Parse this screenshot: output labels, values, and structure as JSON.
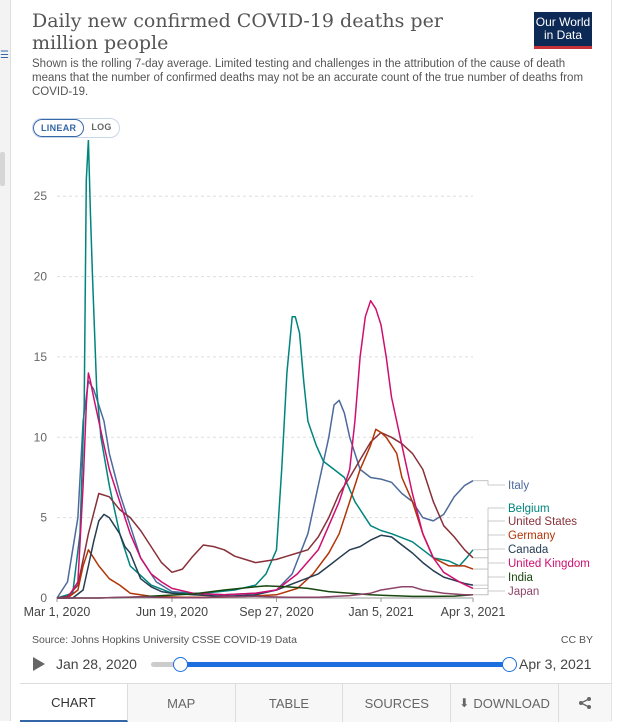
{
  "header": {
    "title": "Daily new confirmed COVID-19 deaths per million people",
    "subtitle": "Shown is the rolling 7-day average. Limited testing and challenges in the attribution of the cause of death means that the number of confirmed deaths may not be an accurate count of the true number of deaths from COVID-19.",
    "logo_line1": "Our World",
    "logo_line2": "in Data"
  },
  "scale": {
    "linear": "LINEAR",
    "log": "LOG",
    "selected": "LINEAR"
  },
  "footer": {
    "source": "Source: Johns Hopkins University CSSE COVID-19 Data",
    "license": "CC BY"
  },
  "timeline": {
    "start_label": "Jan 28, 2020",
    "end_label": "Apr 3, 2021",
    "start_fraction": 0.08,
    "end_fraction": 1.0
  },
  "tabs": {
    "chart": "CHART",
    "map": "MAP",
    "table": "TABLE",
    "sources": "SOURCES",
    "download": "DOWNLOAD"
  },
  "chart_data": {
    "type": "line",
    "title": "",
    "xlabel": "",
    "ylabel": "",
    "x_ticks": [
      "Mar 1, 2020",
      "Jun 19, 2020",
      "Sep 27, 2020",
      "Jan 5, 2021",
      "Apr 3, 2021"
    ],
    "x_tick_days": [
      0,
      110,
      210,
      310,
      398
    ],
    "y_ticks": [
      0,
      5,
      10,
      15,
      20,
      25
    ],
    "ylim": [
      0,
      28
    ],
    "xlim_days": [
      0,
      398
    ],
    "grid": "horizontal dashed",
    "legend": "right, inline labels at line ends",
    "series": [
      {
        "name": "Italy",
        "color": "#4c6a9c",
        "x": [
          0,
          10,
          20,
          25,
          30,
          35,
          40,
          45,
          50,
          60,
          70,
          80,
          95,
          110,
          130,
          160,
          190,
          210,
          225,
          240,
          250,
          260,
          265,
          270,
          275,
          280,
          290,
          300,
          310,
          320,
          330,
          340,
          350,
          360,
          370,
          380,
          390,
          398
        ],
        "y": [
          0,
          1,
          5,
          11,
          13.5,
          13,
          12,
          11,
          9,
          6.5,
          4.5,
          2.5,
          1,
          0.4,
          0.3,
          0.2,
          0.3,
          0.5,
          1.5,
          4,
          7,
          10,
          12,
          12.3,
          11.5,
          10,
          8,
          7.5,
          7.4,
          7.2,
          6.5,
          6,
          5,
          4.8,
          5.2,
          6.3,
          7,
          7.3
        ]
      },
      {
        "name": "Belgium",
        "color": "#00847e",
        "x": [
          0,
          15,
          22,
          26,
          28,
          30,
          32,
          34,
          38,
          42,
          50,
          60,
          70,
          90,
          110,
          140,
          170,
          190,
          200,
          210,
          215,
          220,
          225,
          228,
          232,
          236,
          240,
          248,
          255,
          265,
          275,
          285,
          300,
          310,
          320,
          340,
          360,
          375,
          385,
          392,
          398
        ],
        "y": [
          0,
          0.3,
          4,
          12,
          26,
          28.5,
          24,
          20,
          13,
          10,
          7,
          4,
          2,
          0.8,
          0.3,
          0.3,
          0.5,
          0.8,
          1.5,
          3,
          8,
          14,
          17.5,
          17.5,
          16.5,
          13.5,
          11,
          9.5,
          8.5,
          8,
          7.5,
          6,
          4.5,
          4.2,
          4,
          3.5,
          2.5,
          2.3,
          2,
          2.5,
          3
        ]
      },
      {
        "name": "United States",
        "color": "#883039",
        "x": [
          0,
          10,
          20,
          30,
          40,
          50,
          60,
          70,
          80,
          90,
          100,
          110,
          120,
          130,
          140,
          150,
          160,
          170,
          180,
          190,
          200,
          210,
          220,
          230,
          240,
          250,
          260,
          270,
          280,
          290,
          300,
          310,
          320,
          330,
          340,
          350,
          360,
          370,
          380,
          390,
          398
        ],
        "y": [
          0,
          0.1,
          0.8,
          4,
          6.5,
          6.3,
          5.5,
          5,
          4.2,
          3.2,
          2.2,
          1.6,
          1.8,
          2.6,
          3.3,
          3.2,
          3,
          2.6,
          2.4,
          2.2,
          2.3,
          2.4,
          2.6,
          2.8,
          3,
          3.8,
          5,
          6.5,
          7.5,
          8.6,
          9.7,
          10.3,
          10,
          9.6,
          9,
          8,
          6,
          4.5,
          3.8,
          3,
          2.5
        ]
      },
      {
        "name": "Germany",
        "color": "#b13507",
        "x": [
          0,
          10,
          20,
          25,
          30,
          35,
          40,
          50,
          60,
          70,
          90,
          120,
          150,
          180,
          210,
          230,
          245,
          260,
          270,
          280,
          290,
          300,
          305,
          310,
          315,
          320,
          325,
          330,
          340,
          350,
          360,
          375,
          390,
          398
        ],
        "y": [
          0,
          0,
          0.5,
          2,
          3,
          2.5,
          2,
          1.2,
          0.8,
          0.3,
          0.1,
          0.05,
          0.05,
          0.1,
          0.2,
          0.6,
          1.5,
          2.8,
          4,
          6,
          8,
          9.5,
          10.5,
          10.3,
          10,
          9.5,
          9,
          7.5,
          6,
          4,
          2.5,
          2,
          2,
          1.8
        ]
      },
      {
        "name": "Canada",
        "color": "#263d52",
        "x": [
          0,
          15,
          25,
          30,
          35,
          40,
          45,
          50,
          55,
          60,
          65,
          70,
          75,
          80,
          90,
          100,
          110,
          130,
          160,
          190,
          210,
          230,
          250,
          260,
          270,
          280,
          290,
          300,
          310,
          320,
          330,
          340,
          350,
          360,
          370,
          380,
          390,
          398
        ],
        "y": [
          0,
          0,
          0.5,
          2,
          3.5,
          4.8,
          5.2,
          5,
          4.5,
          4,
          3.2,
          2.8,
          2,
          1.2,
          0.7,
          0.4,
          0.3,
          0.2,
          0.1,
          0.2,
          0.5,
          1,
          1.5,
          2,
          2.5,
          3,
          3.2,
          3.6,
          3.9,
          3.8,
          3.3,
          2.8,
          2.2,
          1.7,
          1.3,
          1.1,
          0.9,
          0.8
        ]
      },
      {
        "name": "United Kingdom",
        "color": "#ce0f71",
        "x": [
          0,
          10,
          20,
          25,
          28,
          30,
          32,
          35,
          40,
          45,
          50,
          60,
          70,
          80,
          90,
          100,
          110,
          130,
          160,
          190,
          210,
          230,
          250,
          260,
          270,
          280,
          285,
          290,
          295,
          300,
          305,
          310,
          315,
          320,
          330,
          340,
          350,
          360,
          370,
          385,
          398
        ],
        "y": [
          0,
          0,
          1,
          7,
          12,
          14,
          13.5,
          12.5,
          11,
          9.5,
          8,
          6,
          4,
          2.5,
          1.5,
          1,
          0.6,
          0.3,
          0.2,
          0.3,
          0.5,
          1.5,
          3,
          4.5,
          6,
          8,
          11,
          15,
          17.5,
          18.5,
          18,
          17,
          15,
          12.5,
          9.5,
          6.5,
          4,
          2.5,
          1.6,
          1,
          0.6
        ]
      },
      {
        "name": "India",
        "color": "#18470f",
        "x": [
          0,
          40,
          70,
          100,
          130,
          160,
          190,
          200,
          220,
          240,
          260,
          280,
          300,
          320,
          340,
          360,
          380,
          398
        ],
        "y": [
          0,
          0,
          0.05,
          0.15,
          0.25,
          0.5,
          0.7,
          0.75,
          0.7,
          0.6,
          0.4,
          0.3,
          0.2,
          0.15,
          0.1,
          0.1,
          0.12,
          0.2
        ]
      },
      {
        "name": "Japan",
        "color": "#8c4569",
        "x": [
          0,
          40,
          60,
          80,
          110,
          140,
          160,
          190,
          220,
          250,
          280,
          300,
          310,
          320,
          330,
          340,
          350,
          360,
          370,
          380,
          390,
          398
        ],
        "y": [
          0,
          0,
          0.05,
          0.07,
          0.01,
          0.02,
          0.08,
          0.1,
          0.05,
          0.05,
          0.15,
          0.3,
          0.5,
          0.6,
          0.7,
          0.7,
          0.5,
          0.4,
          0.3,
          0.25,
          0.2,
          0.2
        ]
      }
    ]
  }
}
